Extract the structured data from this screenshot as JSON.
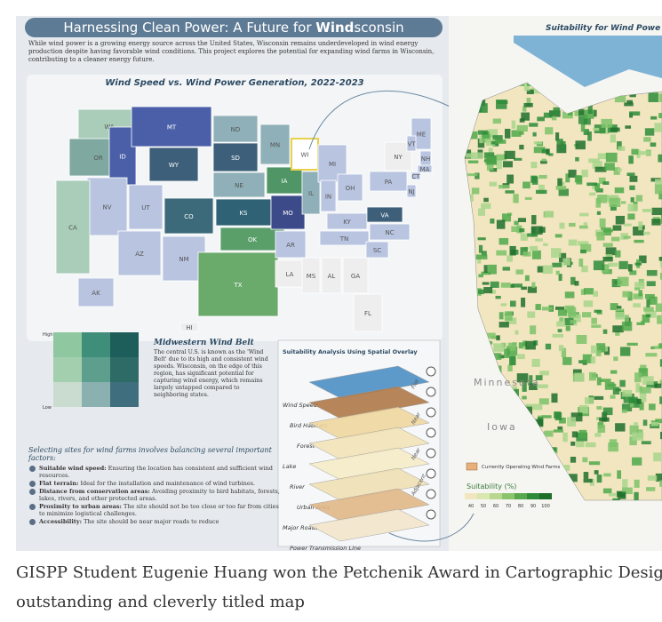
{
  "poster": {
    "title_prefix": "Harnessing Clean Power: A Future for ",
    "title_bold": "Wind",
    "title_suffix": "sconsin",
    "intro": "While wind power is a growing energy source across the United States, Wisconsin remains underdeveloped in wind energy production despite having favorable wind conditions. This project explores the potential for expanding wind farms in Wisconsin, contributing to a cleaner energy future.",
    "us_map": {
      "title": "Wind Speed vs. Wind Power Generation, 2022-2023",
      "states": [
        {
          "label": "WA",
          "color": "#a9cdb9"
        },
        {
          "label": "OR",
          "color": "#7fa9a0"
        },
        {
          "label": "ID",
          "color": "#4a5fa8"
        },
        {
          "label": "MT",
          "color": "#4a5fa8"
        },
        {
          "label": "WY",
          "color": "#3d5f7a"
        },
        {
          "label": "NV",
          "color": "#b8c4e0"
        },
        {
          "label": "UT",
          "color": "#b8c4e0"
        },
        {
          "label": "CA",
          "color": "#a9cdb9"
        },
        {
          "label": "AZ",
          "color": "#b8c4e0"
        },
        {
          "label": "CO",
          "color": "#3d6a7a"
        },
        {
          "label": "NM",
          "color": "#b8c4e0"
        },
        {
          "label": "ND",
          "color": "#8fb0b8"
        },
        {
          "label": "SD",
          "color": "#3d5f7a"
        },
        {
          "label": "NE",
          "color": "#8fb0b8"
        },
        {
          "label": "KS",
          "color": "#2f6275"
        },
        {
          "label": "OK",
          "color": "#5a9e6a"
        },
        {
          "label": "TX",
          "color": "#6aaa6a"
        },
        {
          "label": "MN",
          "color": "#8fb0b8"
        },
        {
          "label": "IA",
          "color": "#4f9566"
        },
        {
          "label": "MO",
          "color": "#3d4a8a"
        },
        {
          "label": "AR",
          "color": "#b8c4e0"
        },
        {
          "label": "LA",
          "color": "#eeeeee"
        },
        {
          "label": "WI",
          "color": "#ffffff"
        },
        {
          "label": "IL",
          "color": "#8fb0b8"
        },
        {
          "label": "MI",
          "color": "#b8c4e0"
        },
        {
          "label": "IN",
          "color": "#b8c4e0"
        },
        {
          "label": "OH",
          "color": "#b8c4e0"
        },
        {
          "label": "KY",
          "color": "#b8c4e0"
        },
        {
          "label": "TN",
          "color": "#b8c4e0"
        },
        {
          "label": "MS",
          "color": "#eeeeee"
        },
        {
          "label": "AL",
          "color": "#eeeeee"
        },
        {
          "label": "GA",
          "color": "#eeeeee"
        },
        {
          "label": "FL",
          "color": "#eeeeee"
        },
        {
          "label": "SC",
          "color": "#b8c4e0"
        },
        {
          "label": "NC",
          "color": "#b8c4e0"
        },
        {
          "label": "VA",
          "color": "#3d5f7a"
        },
        {
          "label": "PA",
          "color": "#b8c4e0"
        },
        {
          "label": "NY",
          "color": "#eeeeee"
        },
        {
          "label": "ME",
          "color": "#b8c4e0"
        },
        {
          "label": "NH",
          "color": "#b8c4e0"
        },
        {
          "label": "MA",
          "color": "#b8c4e0"
        },
        {
          "label": "CT",
          "color": "#b8c4e0"
        },
        {
          "label": "NJ",
          "color": "#b8c4e0"
        },
        {
          "label": "VT",
          "color": "#b8c4e0"
        },
        {
          "label": "AK",
          "color": "#b8c4e0"
        },
        {
          "label": "HI",
          "color": "#eeeeee"
        }
      ]
    },
    "bivariate_legend": {
      "high": "High",
      "low": "Low"
    },
    "wind_belt": {
      "title": "Midwestern Wind Belt",
      "text": "The central U.S. is known as the 'Wind Belt' due to its high and consistent wind speeds. Wisconsin, on the edge of this region, has significant potential for capturing wind energy, which remains largely untapped compared to neighboring states."
    },
    "suitability_analysis": {
      "title": "Suitability Analysis Using Spatial Overlay",
      "layers": [
        "Wind Speed",
        "Bird Habitats",
        "Forest",
        "Lake",
        "River",
        "Urban Area",
        "Major Roads",
        "Power Transmission Line"
      ],
      "side": [
        "Flat",
        "Near",
        "Near",
        "Adjacent"
      ]
    },
    "criteria": {
      "intro": "Selecting sites for wind farms involves balancing several important factors:",
      "items": [
        {
          "term": "Suitable wind speed:",
          "text": "Ensuring the location has consistent and sufficient wind resources."
        },
        {
          "term": "Flat terrain:",
          "text": "Ideal for the installation and maintenance of wind turbines."
        },
        {
          "term": "Distance from conservation areas:",
          "text": "Avoiding proximity to bird habitats, forests, lakes, rivers, and other protected areas."
        },
        {
          "term": "Proximity to urban areas:",
          "text": "The site should not be too close or too far from cities to minimize logistical challenges."
        },
        {
          "term": "Accessibility:",
          "text": "The site should be near major roads to reduce"
        }
      ]
    },
    "wisconsin": {
      "title": "Suitability for Wind Powe",
      "neighbors": [
        "Minnesota",
        "Iowa"
      ],
      "legend": {
        "farms": "Currently Operating Wind Farms",
        "suitability": "Suitability (%)",
        "ticks": [
          40,
          50,
          60,
          70,
          80,
          90,
          100
        ]
      }
    }
  },
  "caption": {
    "lines": [
      "GISPP Student Eugenie Huang won the Petchenik Award in Cartographic Desig",
      "outstanding and cleverly titled map"
    ]
  }
}
